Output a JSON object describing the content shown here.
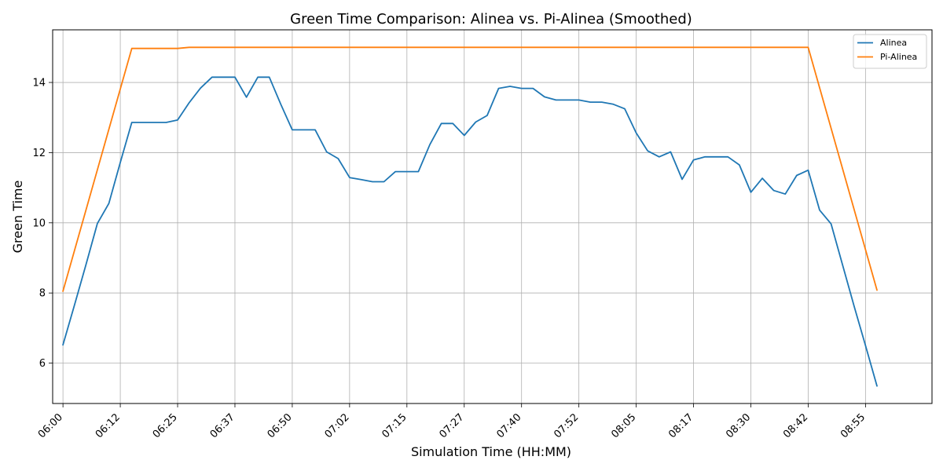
{
  "chart_data": {
    "type": "line",
    "title": "Green Time Comparison: Alinea vs. Pi-Alinea (Smoothed)",
    "xlabel": "Simulation Time (HH:MM)",
    "ylabel": "Green Time",
    "x_ticks": [
      "06:00",
      "06:12",
      "06:25",
      "06:37",
      "06:50",
      "07:02",
      "07:15",
      "07:27",
      "07:40",
      "07:52",
      "08:05",
      "08:17",
      "08:30",
      "08:42",
      "08:55"
    ],
    "y_ticks": [
      6,
      8,
      10,
      12,
      14
    ],
    "xlim": [
      -0.9,
      75.8
    ],
    "ylim": [
      4.85,
      15.5
    ],
    "grid": true,
    "legend_position": "top-right",
    "series": [
      {
        "name": "Alinea",
        "color": "#1f77b4",
        "x": [
          0,
          1,
          2,
          3,
          4,
          5,
          6,
          7,
          8,
          9,
          10,
          11,
          12,
          13,
          14,
          15,
          16,
          17,
          18,
          19,
          20,
          21,
          22,
          23,
          24,
          25,
          26,
          27,
          28,
          29,
          30,
          31,
          32,
          33,
          34,
          35,
          36,
          37,
          38,
          39,
          40,
          41,
          42,
          43,
          44,
          45,
          46,
          47,
          48,
          49,
          50,
          51,
          52,
          53,
          54,
          55,
          56,
          57,
          58,
          59,
          60,
          61,
          62,
          63,
          64,
          65,
          66,
          67,
          68,
          69,
          70,
          71
        ],
        "values": [
          6.52,
          7.65,
          8.8,
          9.98,
          10.55,
          11.72,
          12.86,
          12.86,
          12.86,
          12.86,
          12.93,
          13.42,
          13.84,
          14.15,
          14.15,
          14.15,
          13.58,
          14.15,
          14.15,
          13.38,
          12.65,
          12.65,
          12.65,
          12.02,
          11.83,
          11.29,
          11.23,
          11.17,
          11.17,
          11.46,
          11.46,
          11.46,
          12.23,
          12.83,
          12.83,
          12.49,
          12.87,
          13.06,
          13.83,
          13.89,
          13.83,
          13.83,
          13.59,
          13.5,
          13.5,
          13.5,
          13.44,
          13.44,
          13.38,
          13.25,
          12.56,
          12.05,
          11.88,
          12.02,
          11.24,
          11.79,
          11.88,
          11.88,
          11.88,
          11.65,
          10.87,
          11.27,
          10.92,
          10.82,
          11.35,
          11.5,
          10.36,
          9.97,
          8.8,
          7.63,
          6.5,
          5.35
        ]
      },
      {
        "name": "Pi-Alinea",
        "color": "#ff7f0e",
        "x": [
          0,
          6,
          10,
          11,
          65,
          71
        ],
        "values": [
          8.05,
          14.97,
          14.97,
          15.0,
          15.0,
          8.08
        ]
      }
    ]
  }
}
